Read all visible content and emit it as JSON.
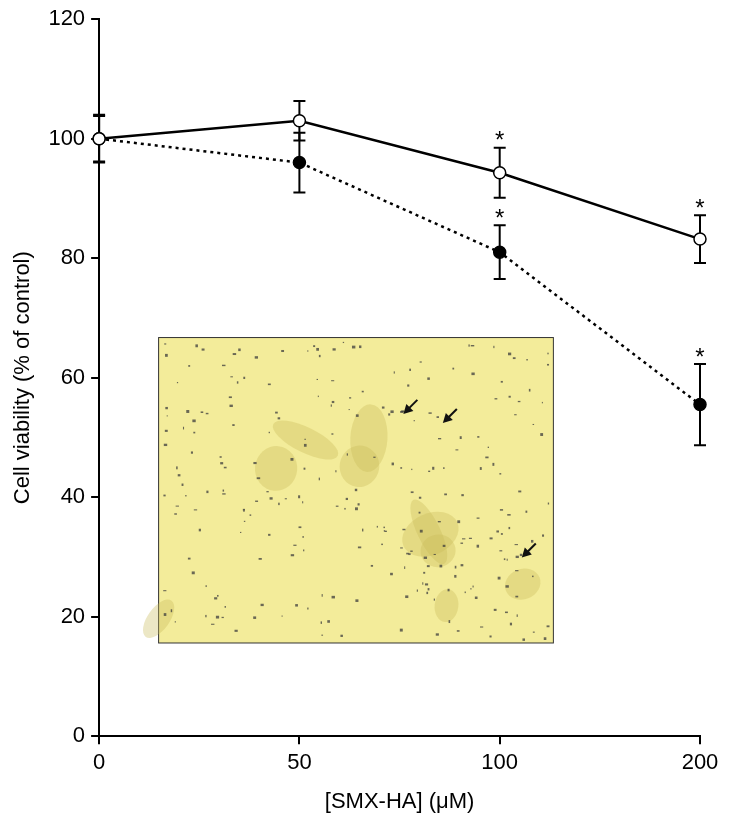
{
  "chart_data": {
    "type": "line",
    "x_label": "[SMX-HA] (μM)",
    "y_label": "Cell viability (% of control)",
    "categories": [
      "0",
      "50",
      "100",
      "200"
    ],
    "ylim": [
      0,
      120
    ],
    "yticks": [
      0,
      20,
      40,
      60,
      80,
      100,
      120
    ],
    "grid": false,
    "series": [
      {
        "color": "#000000",
        "marker": "open circle",
        "line_style": "solid",
        "values": [
          100,
          103,
          94.3,
          83.2
        ],
        "errors": [
          4,
          3.3,
          4.2,
          4
        ],
        "annotations": [
          null,
          null,
          "*",
          "*"
        ]
      },
      {
        "color": "#000000",
        "marker": "filled circle",
        "line_style": "dotted",
        "values": [
          100,
          96,
          81,
          55.5
        ],
        "errors": [
          3.8,
          5,
          4.5,
          6.8
        ],
        "annotations": [
          null,
          null,
          "*",
          "*"
        ]
      }
    ]
  }
}
